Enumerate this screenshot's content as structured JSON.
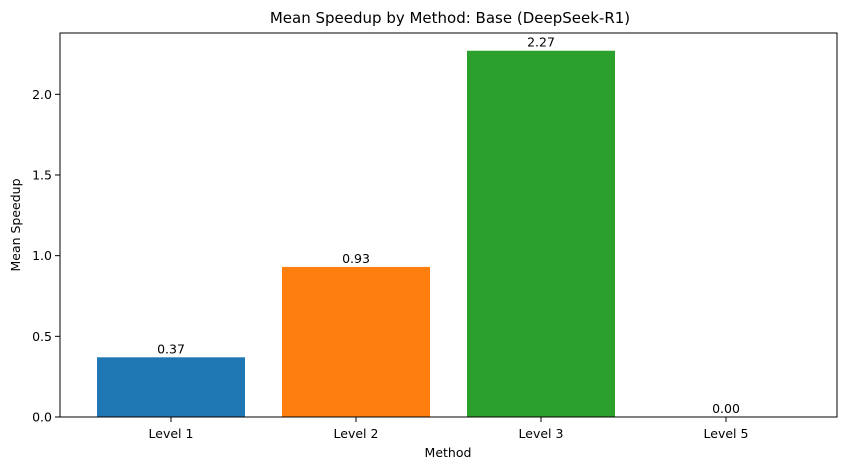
{
  "chart_data": {
    "type": "bar",
    "title": "Mean Speedup by Method: Base (DeepSeek-R1)",
    "xlabel": "Method",
    "ylabel": "Mean Speedup",
    "categories": [
      "Level 1",
      "Level 2",
      "Level 3",
      "Level 5"
    ],
    "values": [
      0.37,
      0.93,
      2.27,
      0.0
    ],
    "data_labels": [
      "0.37",
      "0.93",
      "2.27",
      "0.00"
    ],
    "colors": [
      "#1f77b4",
      "#ff7f0e",
      "#2ca02c",
      "#d62728"
    ],
    "ylim": [
      0,
      2.38
    ],
    "yticks": [
      0.0,
      0.5,
      1.0,
      1.5,
      2.0
    ],
    "ytick_labels": [
      "0.0",
      "0.5",
      "1.0",
      "1.5",
      "2.0"
    ],
    "grid": false,
    "legend": "none"
  }
}
